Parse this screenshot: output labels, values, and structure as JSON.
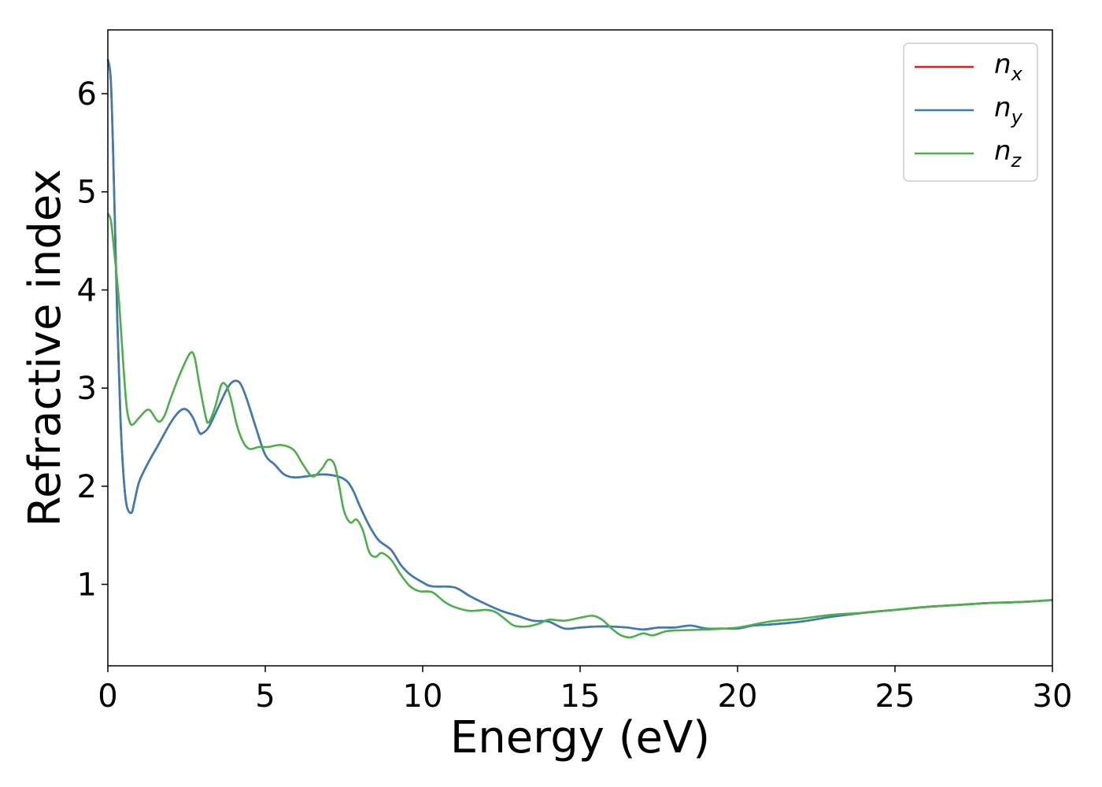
{
  "chart_data": {
    "type": "line",
    "title": "",
    "xlabel": "Energy (eV)",
    "ylabel": "Refractive index",
    "xlim": [
      0,
      30
    ],
    "ylim": [
      0.17,
      6.65
    ],
    "xticks": [
      0,
      5,
      10,
      15,
      20,
      25,
      30
    ],
    "yticks": [
      1,
      2,
      3,
      4,
      5,
      6
    ],
    "grid": false,
    "legend_position": "top-right",
    "series": [
      {
        "name": "n",
        "subscript": "x",
        "color": "#e41a1c",
        "points": [
          [
            0,
            6.35
          ],
          [
            0.1,
            6.1
          ],
          [
            0.2,
            5.0
          ],
          [
            0.3,
            3.7
          ],
          [
            0.4,
            2.7
          ],
          [
            0.5,
            2.1
          ],
          [
            0.6,
            1.8
          ],
          [
            0.75,
            1.73
          ],
          [
            0.85,
            1.85
          ],
          [
            1.0,
            2.05
          ],
          [
            1.3,
            2.25
          ],
          [
            1.6,
            2.42
          ],
          [
            2.0,
            2.65
          ],
          [
            2.3,
            2.77
          ],
          [
            2.5,
            2.78
          ],
          [
            2.7,
            2.7
          ],
          [
            2.9,
            2.55
          ],
          [
            3.0,
            2.54
          ],
          [
            3.2,
            2.6
          ],
          [
            3.5,
            2.8
          ],
          [
            3.8,
            3.0
          ],
          [
            4.0,
            3.07
          ],
          [
            4.2,
            3.05
          ],
          [
            4.4,
            2.9
          ],
          [
            4.7,
            2.6
          ],
          [
            5.0,
            2.32
          ],
          [
            5.3,
            2.22
          ],
          [
            5.6,
            2.12
          ],
          [
            5.9,
            2.09
          ],
          [
            6.3,
            2.1
          ],
          [
            6.8,
            2.12
          ],
          [
            7.3,
            2.1
          ],
          [
            7.6,
            2.05
          ],
          [
            7.8,
            1.95
          ],
          [
            8.0,
            1.8
          ],
          [
            8.3,
            1.6
          ],
          [
            8.6,
            1.45
          ],
          [
            9.0,
            1.35
          ],
          [
            9.3,
            1.2
          ],
          [
            9.6,
            1.1
          ],
          [
            10.0,
            1.02
          ],
          [
            10.3,
            0.98
          ],
          [
            11.0,
            0.97
          ],
          [
            11.5,
            0.88
          ],
          [
            12.0,
            0.8
          ],
          [
            12.5,
            0.73
          ],
          [
            13.0,
            0.68
          ],
          [
            13.5,
            0.63
          ],
          [
            14.0,
            0.62
          ],
          [
            14.5,
            0.55
          ],
          [
            15.0,
            0.56
          ],
          [
            15.5,
            0.57
          ],
          [
            16.0,
            0.57
          ],
          [
            16.5,
            0.56
          ],
          [
            17.0,
            0.54
          ],
          [
            17.5,
            0.56
          ],
          [
            18.0,
            0.56
          ],
          [
            18.5,
            0.58
          ],
          [
            19.0,
            0.55
          ],
          [
            19.5,
            0.55
          ],
          [
            20.0,
            0.55
          ],
          [
            20.5,
            0.58
          ],
          [
            21.0,
            0.59
          ],
          [
            22.0,
            0.62
          ],
          [
            23.0,
            0.67
          ],
          [
            24.0,
            0.71
          ],
          [
            25.0,
            0.74
          ],
          [
            26.0,
            0.77
          ],
          [
            27.0,
            0.79
          ],
          [
            28.0,
            0.81
          ],
          [
            29.0,
            0.82
          ],
          [
            30.0,
            0.84
          ]
        ]
      },
      {
        "name": "n",
        "subscript": "y",
        "color": "#377eb8",
        "points": [
          [
            0,
            6.35
          ],
          [
            0.1,
            6.1
          ],
          [
            0.2,
            5.0
          ],
          [
            0.3,
            3.7
          ],
          [
            0.4,
            2.7
          ],
          [
            0.5,
            2.1
          ],
          [
            0.6,
            1.8
          ],
          [
            0.75,
            1.73
          ],
          [
            0.85,
            1.85
          ],
          [
            1.0,
            2.05
          ],
          [
            1.3,
            2.25
          ],
          [
            1.6,
            2.42
          ],
          [
            2.0,
            2.65
          ],
          [
            2.3,
            2.77
          ],
          [
            2.5,
            2.78
          ],
          [
            2.7,
            2.7
          ],
          [
            2.9,
            2.55
          ],
          [
            3.0,
            2.54
          ],
          [
            3.2,
            2.6
          ],
          [
            3.5,
            2.8
          ],
          [
            3.8,
            3.0
          ],
          [
            4.0,
            3.07
          ],
          [
            4.2,
            3.05
          ],
          [
            4.4,
            2.9
          ],
          [
            4.7,
            2.6
          ],
          [
            5.0,
            2.32
          ],
          [
            5.3,
            2.22
          ],
          [
            5.6,
            2.12
          ],
          [
            5.9,
            2.09
          ],
          [
            6.3,
            2.1
          ],
          [
            6.8,
            2.12
          ],
          [
            7.3,
            2.1
          ],
          [
            7.6,
            2.05
          ],
          [
            7.8,
            1.95
          ],
          [
            8.0,
            1.8
          ],
          [
            8.3,
            1.6
          ],
          [
            8.6,
            1.45
          ],
          [
            9.0,
            1.35
          ],
          [
            9.3,
            1.2
          ],
          [
            9.6,
            1.1
          ],
          [
            10.0,
            1.02
          ],
          [
            10.3,
            0.98
          ],
          [
            11.0,
            0.97
          ],
          [
            11.5,
            0.88
          ],
          [
            12.0,
            0.8
          ],
          [
            12.5,
            0.73
          ],
          [
            13.0,
            0.68
          ],
          [
            13.5,
            0.63
          ],
          [
            14.0,
            0.62
          ],
          [
            14.5,
            0.55
          ],
          [
            15.0,
            0.56
          ],
          [
            15.5,
            0.57
          ],
          [
            16.0,
            0.57
          ],
          [
            16.5,
            0.56
          ],
          [
            17.0,
            0.54
          ],
          [
            17.5,
            0.56
          ],
          [
            18.0,
            0.56
          ],
          [
            18.5,
            0.58
          ],
          [
            19.0,
            0.55
          ],
          [
            19.5,
            0.55
          ],
          [
            20.0,
            0.55
          ],
          [
            20.5,
            0.58
          ],
          [
            21.0,
            0.59
          ],
          [
            22.0,
            0.62
          ],
          [
            23.0,
            0.67
          ],
          [
            24.0,
            0.71
          ],
          [
            25.0,
            0.74
          ],
          [
            26.0,
            0.77
          ],
          [
            27.0,
            0.79
          ],
          [
            28.0,
            0.81
          ],
          [
            29.0,
            0.82
          ],
          [
            30.0,
            0.84
          ]
        ]
      },
      {
        "name": "n",
        "subscript": "z",
        "color": "#4daf4a",
        "points": [
          [
            0,
            4.78
          ],
          [
            0.1,
            4.7
          ],
          [
            0.2,
            4.4
          ],
          [
            0.35,
            3.9
          ],
          [
            0.5,
            3.2
          ],
          [
            0.6,
            2.8
          ],
          [
            0.7,
            2.65
          ],
          [
            0.8,
            2.63
          ],
          [
            1.0,
            2.7
          ],
          [
            1.3,
            2.78
          ],
          [
            1.6,
            2.66
          ],
          [
            1.8,
            2.72
          ],
          [
            2.0,
            2.9
          ],
          [
            2.3,
            3.15
          ],
          [
            2.6,
            3.35
          ],
          [
            2.75,
            3.32
          ],
          [
            2.9,
            3.05
          ],
          [
            3.1,
            2.72
          ],
          [
            3.2,
            2.65
          ],
          [
            3.4,
            2.8
          ],
          [
            3.6,
            3.03
          ],
          [
            3.75,
            3.03
          ],
          [
            3.9,
            2.9
          ],
          [
            4.1,
            2.62
          ],
          [
            4.3,
            2.45
          ],
          [
            4.5,
            2.38
          ],
          [
            4.8,
            2.4
          ],
          [
            5.1,
            2.4
          ],
          [
            5.5,
            2.42
          ],
          [
            5.9,
            2.37
          ],
          [
            6.2,
            2.22
          ],
          [
            6.5,
            2.1
          ],
          [
            6.8,
            2.18
          ],
          [
            7.0,
            2.27
          ],
          [
            7.2,
            2.22
          ],
          [
            7.35,
            2.0
          ],
          [
            7.5,
            1.75
          ],
          [
            7.7,
            1.63
          ],
          [
            7.9,
            1.66
          ],
          [
            8.1,
            1.55
          ],
          [
            8.3,
            1.33
          ],
          [
            8.5,
            1.28
          ],
          [
            8.7,
            1.32
          ],
          [
            9.0,
            1.25
          ],
          [
            9.3,
            1.1
          ],
          [
            9.6,
            0.98
          ],
          [
            9.9,
            0.93
          ],
          [
            10.3,
            0.92
          ],
          [
            10.7,
            0.82
          ],
          [
            11.0,
            0.77
          ],
          [
            11.5,
            0.73
          ],
          [
            12.0,
            0.74
          ],
          [
            12.3,
            0.72
          ],
          [
            12.6,
            0.65
          ],
          [
            12.9,
            0.58
          ],
          [
            13.3,
            0.57
          ],
          [
            13.7,
            0.6
          ],
          [
            14.0,
            0.64
          ],
          [
            14.5,
            0.63
          ],
          [
            15.0,
            0.66
          ],
          [
            15.4,
            0.68
          ],
          [
            15.7,
            0.64
          ],
          [
            16.0,
            0.55
          ],
          [
            16.3,
            0.48
          ],
          [
            16.6,
            0.46
          ],
          [
            17.0,
            0.5
          ],
          [
            17.3,
            0.48
          ],
          [
            17.7,
            0.52
          ],
          [
            18.0,
            0.53
          ],
          [
            19.0,
            0.54
          ],
          [
            20.0,
            0.56
          ],
          [
            21.0,
            0.62
          ],
          [
            22.0,
            0.65
          ],
          [
            23.0,
            0.69
          ],
          [
            24.0,
            0.71
          ],
          [
            25.0,
            0.74
          ],
          [
            26.0,
            0.77
          ],
          [
            27.0,
            0.79
          ],
          [
            28.0,
            0.81
          ],
          [
            29.0,
            0.82
          ],
          [
            30.0,
            0.84
          ]
        ]
      }
    ]
  }
}
